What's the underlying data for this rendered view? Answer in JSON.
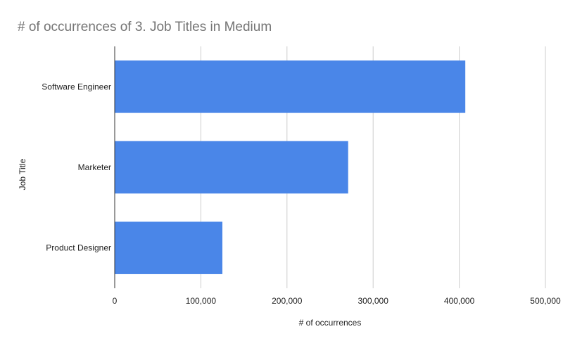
{
  "chart_data": {
    "type": "bar",
    "orientation": "horizontal",
    "title": "# of occurrences of 3. Job Titles in Medium",
    "xlabel": "# of occurrences",
    "ylabel": "Job Title",
    "categories": [
      "Software Engineer",
      "Marketer",
      "Product Designer"
    ],
    "values": [
      407000,
      271000,
      125000
    ],
    "xlim": [
      0,
      500000
    ],
    "x_ticks": [
      0,
      100000,
      200000,
      300000,
      400000,
      500000
    ],
    "x_tick_labels": [
      "0",
      "100,000",
      "200,000",
      "300,000",
      "400,000",
      "500,000"
    ],
    "grid": true,
    "legend": "none",
    "bar_color": "#4a86e8"
  }
}
